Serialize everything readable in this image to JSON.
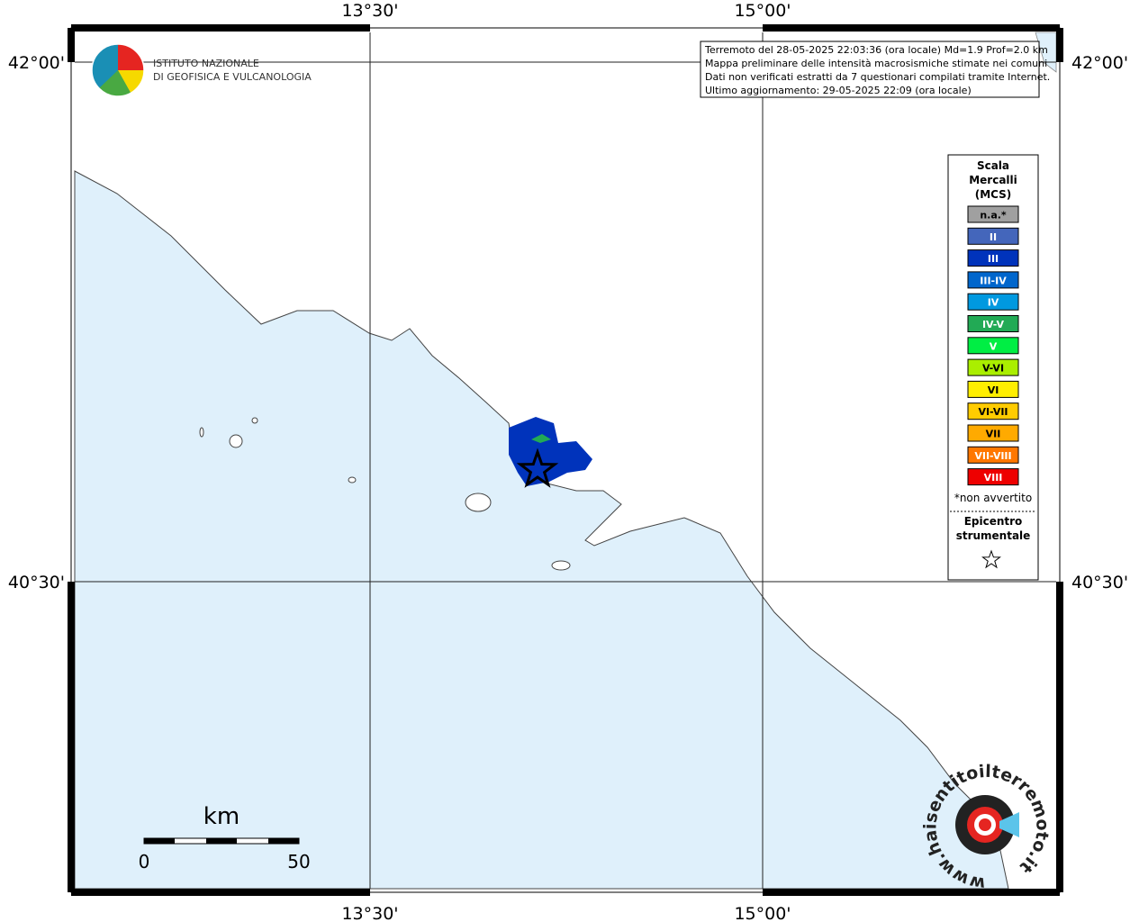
{
  "axes": {
    "longitude_labels": [
      "13°30'",
      "15°00'"
    ],
    "latitude_labels": [
      "42°00'",
      "40°30'"
    ]
  },
  "logo": {
    "lines": [
      "ISTITUTO NAZIONALE",
      "DI GEOFISICA E VULCANOLOGIA"
    ]
  },
  "info_box": {
    "lines": [
      "Terremoto del 28-05-2025 22:03:36 (ora locale) Md=1.9 Prof=2.0 km",
      "Mappa preliminare delle intensità macrosismiche stimate nei comuni",
      "Dati non verificati estratti da 7 questionari compilati tramite Internet.",
      "Ultimo aggiornamento: 29-05-2025 22:09 (ora locale)"
    ]
  },
  "legend": {
    "title_lines": [
      "Scala",
      "Mercalli",
      "(MCS)"
    ],
    "items": [
      {
        "label": "n.a.*",
        "color": "#a0a0a0"
      },
      {
        "label": "II",
        "color": "#4466bb"
      },
      {
        "label": "III",
        "color": "#0033bb"
      },
      {
        "label": "III-IV",
        "color": "#0066cc"
      },
      {
        "label": "IV",
        "color": "#0099e0"
      },
      {
        "label": "IV-V",
        "color": "#22aa55"
      },
      {
        "label": "V",
        "color": "#00ee44"
      },
      {
        "label": "V-VI",
        "color": "#aaee00"
      },
      {
        "label": "VI",
        "color": "#ffee00"
      },
      {
        "label": "VI-VII",
        "color": "#ffcc00"
      },
      {
        "label": "VII",
        "color": "#ffaa00"
      },
      {
        "label": "VII-VIII",
        "color": "#ff7700"
      },
      {
        "label": "VIII",
        "color": "#ee0000"
      }
    ],
    "note": "*non avvertito",
    "epicenter_lines": [
      "Epicentro",
      "strumentale"
    ]
  },
  "scale_bar": {
    "unit": "km",
    "start_label": "0",
    "end_label": "50"
  },
  "badge": {
    "text": "www.haisentitoilterremoto.it"
  }
}
